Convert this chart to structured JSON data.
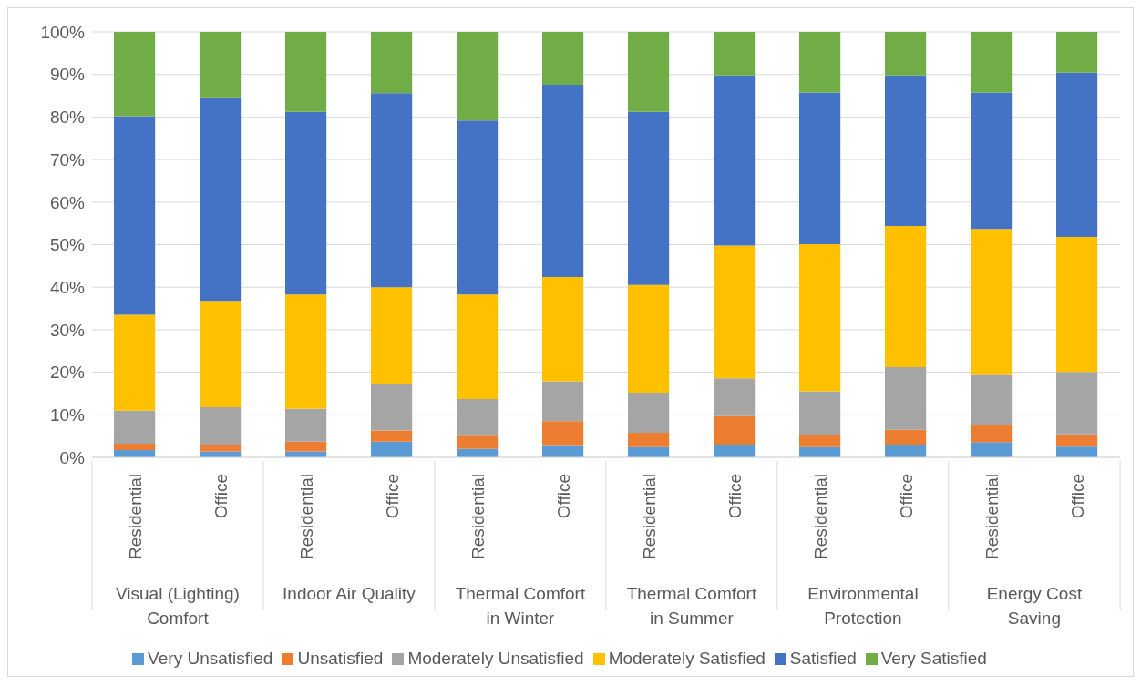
{
  "chart_data": {
    "type": "bar",
    "stacked": true,
    "categories": [
      "Residential",
      "Office",
      "Residential",
      "Office",
      "Residential",
      "Office",
      "Residential",
      "Office",
      "Residential",
      "Office",
      "Residential",
      "Office"
    ],
    "annotations": [
      "Visual (Lighting) Comfort",
      "Indoor Air Quality",
      "Thermal Comfort in Winter",
      "Thermal Comfort in Summer",
      "Environmental Protection",
      "Energy Cost Saving"
    ],
    "series": [
      {
        "name": "Very Unsatisfied",
        "color": "#5b9bd5",
        "values": [
          1.7,
          1.4,
          1.4,
          3.7,
          2.0,
          2.7,
          2.4,
          2.9,
          2.4,
          2.9,
          3.6,
          2.5
        ]
      },
      {
        "name": "Unsatisfied",
        "color": "#ed7d31",
        "values": [
          1.5,
          1.6,
          2.3,
          2.6,
          3.1,
          5.8,
          3.4,
          6.8,
          2.9,
          3.6,
          4.1,
          2.9
        ]
      },
      {
        "name": "Moderately Unsatisfied",
        "color": "#a5a5a5",
        "values": [
          7.8,
          8.8,
          7.7,
          11.0,
          8.6,
          9.4,
          9.4,
          8.9,
          10.2,
          14.7,
          11.7,
          14.7
        ]
      },
      {
        "name": "Moderately Satisfied",
        "color": "#ffc000",
        "values": [
          22.5,
          25.0,
          26.9,
          22.7,
          24.6,
          24.5,
          25.3,
          31.2,
          34.6,
          33.2,
          34.3,
          31.7
        ]
      },
      {
        "name": "Satisfied",
        "color": "#4472c4",
        "values": [
          46.7,
          47.6,
          42.9,
          45.6,
          40.9,
          45.2,
          40.7,
          40.0,
          35.6,
          35.4,
          32.0,
          38.6
        ]
      },
      {
        "name": "Very Satisfied",
        "color": "#70ad47",
        "values": [
          19.9,
          15.6,
          18.8,
          14.4,
          20.8,
          12.4,
          18.8,
          10.2,
          14.3,
          10.2,
          14.3,
          9.6
        ]
      }
    ],
    "ylim": [
      0,
      100
    ],
    "yticks": [
      {
        "value": 0,
        "label": "0%"
      },
      {
        "value": 10,
        "label": "10%"
      },
      {
        "value": 20,
        "label": "20%"
      },
      {
        "value": 30,
        "label": "30%"
      },
      {
        "value": 40,
        "label": "40%"
      },
      {
        "value": 50,
        "label": "50%"
      },
      {
        "value": 60,
        "label": "60%"
      },
      {
        "value": 70,
        "label": "70%"
      },
      {
        "value": 80,
        "label": "80%"
      },
      {
        "value": 90,
        "label": "90%"
      },
      {
        "value": 100,
        "label": "100%"
      }
    ],
    "grid": "y",
    "legend": "bottom"
  }
}
